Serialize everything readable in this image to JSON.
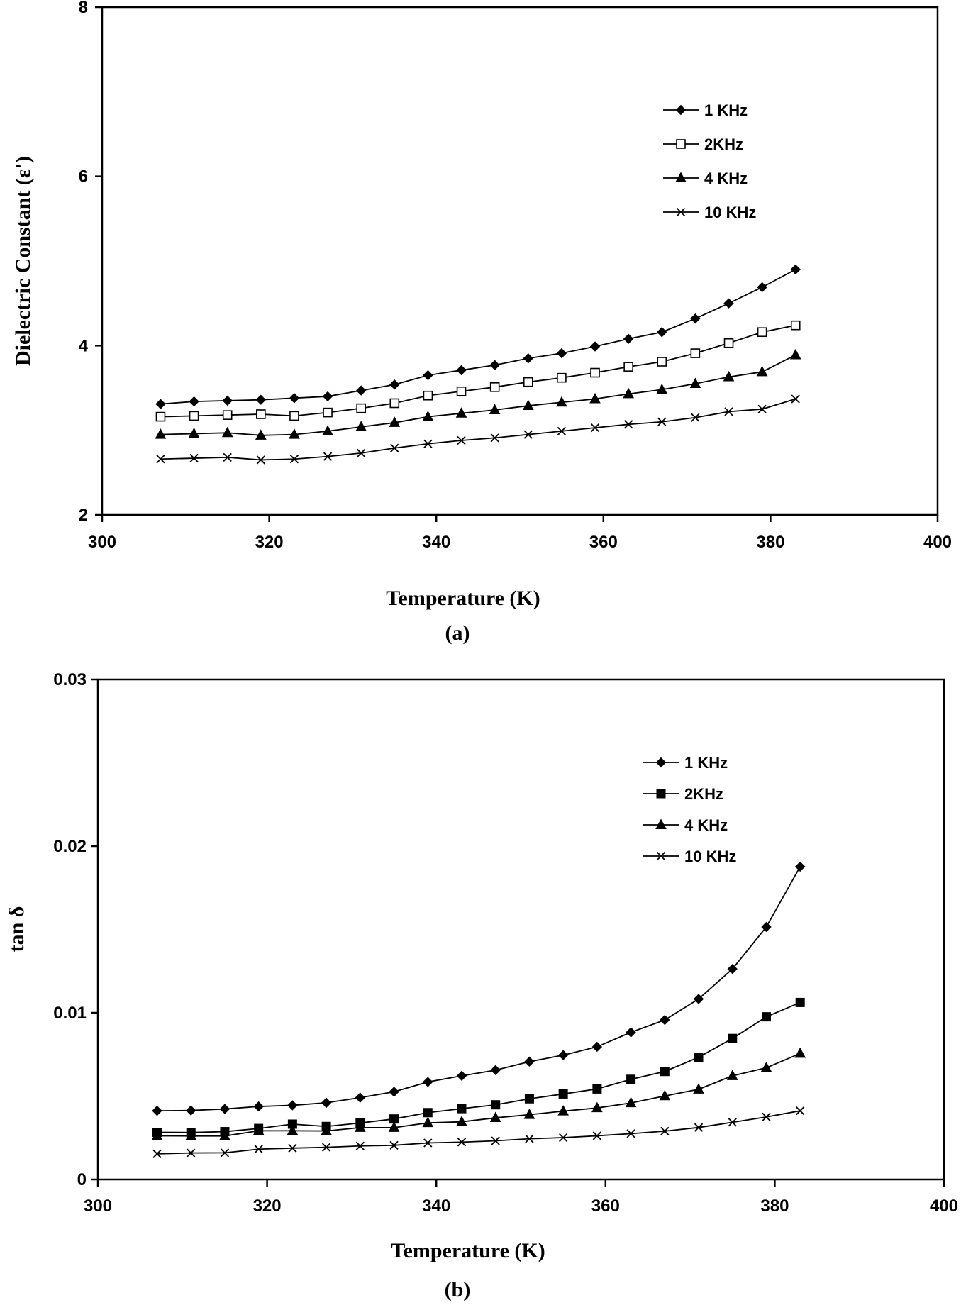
{
  "chart_data": [
    {
      "type": "line",
      "title": "",
      "panel_label": "(a)",
      "xlabel": "Temperature (K)",
      "ylabel": "Dielectric Constant (ε')",
      "xlim": [
        300,
        400
      ],
      "ylim": [
        2,
        8
      ],
      "xticks": [
        "300",
        "320",
        "340",
        "360",
        "380",
        "400"
      ],
      "yticks": [
        "2",
        "4",
        "6",
        "8"
      ],
      "legend_position": "top-right",
      "x": [
        307,
        311,
        315,
        319,
        323,
        327,
        331,
        335,
        339,
        343,
        347,
        351,
        355,
        359,
        363,
        367,
        371,
        375,
        379,
        383
      ],
      "series": [
        {
          "name": "1 KHz",
          "marker": "diamond",
          "values": [
            3.31,
            3.34,
            3.35,
            3.36,
            3.38,
            3.4,
            3.47,
            3.54,
            3.65,
            3.71,
            3.77,
            3.85,
            3.91,
            3.99,
            4.08,
            4.16,
            4.32,
            4.5,
            4.69,
            4.9
          ]
        },
        {
          "name": "2KHz",
          "marker": "open-square",
          "values": [
            3.16,
            3.17,
            3.18,
            3.19,
            3.17,
            3.21,
            3.26,
            3.32,
            3.41,
            3.46,
            3.51,
            3.57,
            3.62,
            3.68,
            3.75,
            3.81,
            3.91,
            4.03,
            4.16,
            4.24
          ]
        },
        {
          "name": "4 KHz",
          "marker": "triangle",
          "values": [
            2.95,
            2.96,
            2.97,
            2.94,
            2.95,
            2.99,
            3.04,
            3.09,
            3.16,
            3.2,
            3.24,
            3.29,
            3.33,
            3.37,
            3.43,
            3.48,
            3.55,
            3.63,
            3.69,
            3.89
          ]
        },
        {
          "name": "10 KHz",
          "marker": "cross",
          "values": [
            2.66,
            2.67,
            2.68,
            2.65,
            2.66,
            2.69,
            2.73,
            2.79,
            2.84,
            2.88,
            2.91,
            2.95,
            2.99,
            3.03,
            3.07,
            3.1,
            3.15,
            3.22,
            3.25,
            3.37
          ]
        }
      ]
    },
    {
      "type": "line",
      "title": "",
      "panel_label": "(b)",
      "xlabel": "Temperature (K)",
      "ylabel": "tan δ",
      "xlim": [
        300,
        400
      ],
      "ylim": [
        0,
        0.03
      ],
      "xticks": [
        "300",
        "320",
        "340",
        "360",
        "380",
        "400"
      ],
      "yticks": [
        "0",
        "0.01",
        "0.02",
        "0.03"
      ],
      "legend_position": "top-right",
      "x": [
        307,
        311,
        315,
        319,
        323,
        327,
        331,
        335,
        339,
        343,
        347,
        351,
        355,
        359,
        363,
        367,
        371,
        375,
        379,
        383
      ],
      "series": [
        {
          "name": "1 KHz",
          "marker": "diamond",
          "values": [
            0.00412,
            0.00414,
            0.00423,
            0.00438,
            0.00445,
            0.0046,
            0.00491,
            0.00526,
            0.00585,
            0.00622,
            0.00656,
            0.00707,
            0.00746,
            0.00796,
            0.00883,
            0.00957,
            0.01083,
            0.01263,
            0.01515,
            0.01877
          ]
        },
        {
          "name": "2KHz",
          "marker": "filled-square",
          "values": [
            0.00283,
            0.00282,
            0.00287,
            0.00306,
            0.00332,
            0.00318,
            0.00339,
            0.00363,
            0.00401,
            0.00425,
            0.00448,
            0.00484,
            0.00513,
            0.00543,
            0.00601,
            0.00648,
            0.00733,
            0.00846,
            0.00976,
            0.01062
          ]
        },
        {
          "name": "4 KHz",
          "marker": "triangle",
          "values": [
            0.00262,
            0.00261,
            0.00261,
            0.00292,
            0.00292,
            0.00291,
            0.00311,
            0.00311,
            0.0034,
            0.00346,
            0.0037,
            0.00389,
            0.0041,
            0.00429,
            0.00459,
            0.00501,
            0.00541,
            0.00622,
            0.0067,
            0.00756
          ]
        },
        {
          "name": "10 KHz",
          "marker": "cross",
          "values": [
            0.00154,
            0.00159,
            0.0016,
            0.00182,
            0.00188,
            0.00193,
            0.00201,
            0.00205,
            0.00219,
            0.00224,
            0.00232,
            0.00244,
            0.00251,
            0.00262,
            0.00275,
            0.0029,
            0.00312,
            0.00343,
            0.00375,
            0.00412
          ]
        }
      ]
    }
  ]
}
